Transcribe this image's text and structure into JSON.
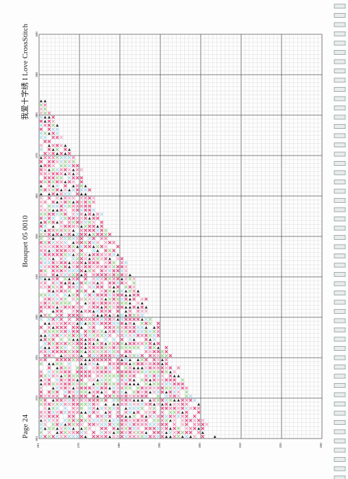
{
  "header": {
    "page": "Page 24",
    "title": "Bouquet 05 0010",
    "brand": "我爱十字绣 I Love CrossStitch"
  },
  "grid": {
    "row_labels": [
      "400",
      "390",
      "380",
      "370",
      "360",
      "350",
      "340",
      "330",
      "320",
      "310",
      "301"
    ],
    "column_labels": [
      "261",
      "270",
      "280",
      "290",
      "300",
      "310",
      "320",
      "330"
    ]
  }
}
